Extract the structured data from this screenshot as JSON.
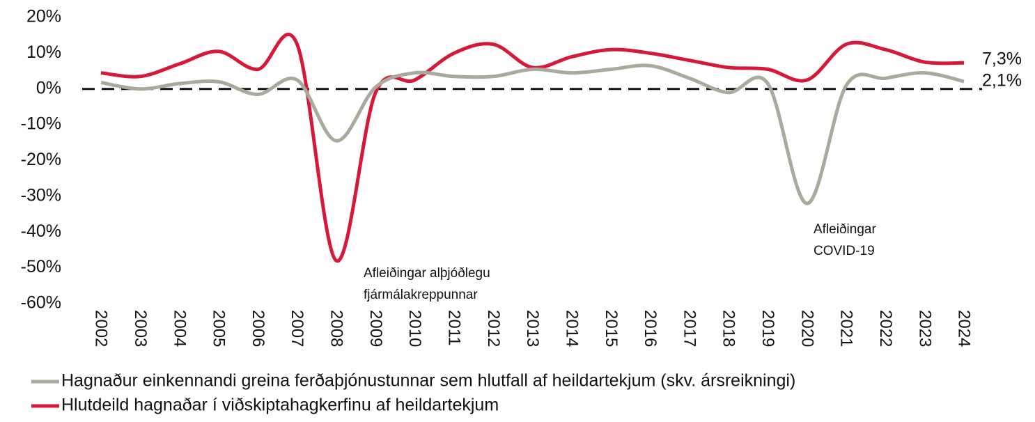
{
  "chart_data": {
    "type": "line",
    "categories": [
      "2002",
      "2003",
      "2004",
      "2005",
      "2006",
      "2007",
      "2008",
      "2009",
      "2010",
      "2011",
      "2012",
      "2013",
      "2014",
      "2015",
      "2016",
      "2017",
      "2018",
      "2019",
      "2020",
      "2021",
      "2022",
      "2023",
      "2024"
    ],
    "series": [
      {
        "name": "Hagnaður einkennandi greina ferðaþjónustunnar sem hlutfall af heildartekjum (skv. ársreikningi)",
        "color": "#a9a99e",
        "values": [
          1.8,
          0,
          1.5,
          2,
          -1.5,
          2.5,
          -14.5,
          0.5,
          4.5,
          3.5,
          3.5,
          5.5,
          4.5,
          5.5,
          6.5,
          3,
          -1,
          1.5,
          -32,
          1,
          3,
          4.5,
          2.1
        ],
        "value_labels": [
          null,
          null,
          null,
          null,
          null,
          null,
          null,
          null,
          null,
          null,
          null,
          null,
          null,
          null,
          null,
          null,
          null,
          null,
          null,
          null,
          null,
          null,
          "2,1%"
        ]
      },
      {
        "name": "Hlutdeild hagnaðar í viðskiptahagkerfinu af heildartekjum",
        "color": "#d6193a",
        "values": [
          4.5,
          3.5,
          7,
          10.5,
          5.5,
          12.5,
          -48,
          -1,
          2.5,
          10,
          12.5,
          6,
          9,
          11,
          10,
          8,
          6,
          5.5,
          2.5,
          12.5,
          11,
          7.5,
          7.3
        ],
        "value_labels": [
          null,
          null,
          null,
          null,
          null,
          null,
          null,
          null,
          null,
          null,
          null,
          null,
          null,
          null,
          null,
          null,
          null,
          null,
          null,
          null,
          null,
          null,
          "7,3%"
        ]
      }
    ],
    "ylim": [
      -60,
      20
    ],
    "yticks": [
      {
        "value": 20,
        "label": "20%"
      },
      {
        "value": 10,
        "label": "10%"
      },
      {
        "value": 0,
        "label": "0%"
      },
      {
        "value": -10,
        "label": "-10%"
      },
      {
        "value": -20,
        "label": "-20%"
      },
      {
        "value": -30,
        "label": "-30%"
      },
      {
        "value": -40,
        "label": "-40%"
      },
      {
        "value": -50,
        "label": "-50%"
      },
      {
        "value": -60,
        "label": "-60%"
      }
    ],
    "reference_line": 0,
    "annotations": [
      {
        "lines": [
          "Afleiðingar alþjóðlegu",
          "fjármálakreppunnar"
        ]
      },
      {
        "lines": [
          "Afleiðingar",
          "COVID-19"
        ]
      }
    ],
    "legend": "bottom"
  }
}
